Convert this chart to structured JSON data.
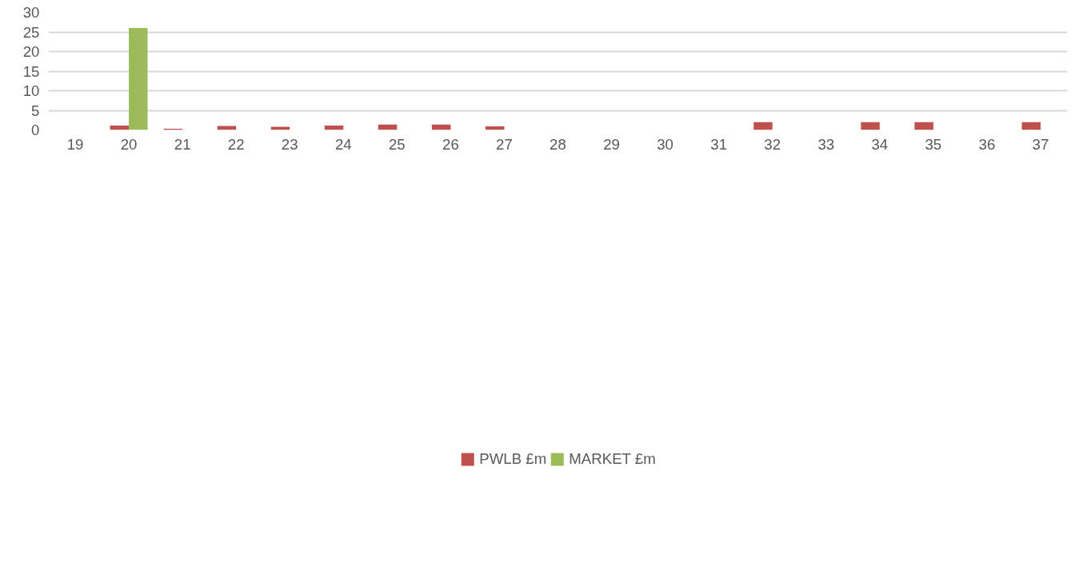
{
  "chart_data": {
    "type": "bar",
    "categories": [
      "19",
      "20",
      "21",
      "22",
      "23",
      "24",
      "25",
      "26",
      "27",
      "28",
      "29",
      "30",
      "31",
      "32",
      "33",
      "34",
      "35",
      "36",
      "37"
    ],
    "series": [
      {
        "name": "PWLB £m",
        "color": "#c0504d",
        "values": [
          null,
          1.1,
          0.3,
          1.0,
          0.8,
          1.1,
          1.4,
          1.4,
          0.9,
          null,
          null,
          null,
          null,
          2,
          null,
          2,
          2,
          null,
          2
        ]
      },
      {
        "name": "MARKET £m",
        "color": "#9bbb59",
        "values": [
          null,
          26,
          null,
          null,
          null,
          null,
          null,
          null,
          null,
          null,
          null,
          null,
          null,
          null,
          null,
          null,
          null,
          null,
          null
        ]
      }
    ],
    "ylim": [
      0,
      30
    ],
    "yticks": [
      0,
      5,
      10,
      15,
      20,
      25,
      30
    ],
    "grid": "y",
    "legend": "bottom"
  }
}
